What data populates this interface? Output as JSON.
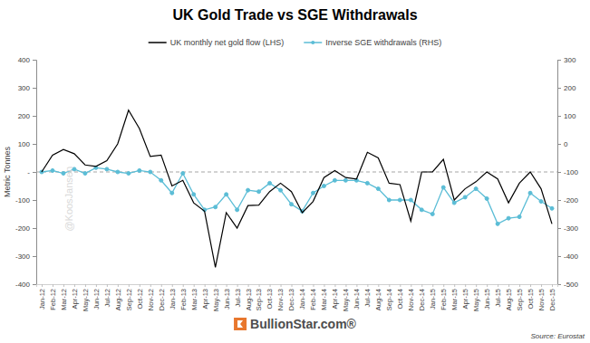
{
  "chart_data": {
    "type": "line",
    "title": "UK Gold Trade vs SGE Withdrawals",
    "y_label": "Metric Tonnes",
    "categories": [
      "Jan-12",
      "Feb-12",
      "Mar-12",
      "Apr-12",
      "May-12",
      "Jun-12",
      "Jul-12",
      "Aug-12",
      "Sep-12",
      "Oct-12",
      "Nov-12",
      "Dec-12",
      "Jan-13",
      "Feb-13",
      "Mar-13",
      "Apr-13",
      "May-13",
      "Jun-13",
      "Jul-13",
      "Aug-13",
      "Sep-13",
      "Oct-13",
      "Nov-13",
      "Dec-13",
      "Jan-14",
      "Feb-14",
      "Mar-14",
      "Apr-14",
      "May-14",
      "Jun-14",
      "Jul-14",
      "Aug-14",
      "Sep-14",
      "Oct-14",
      "Nov-14",
      "Dec-14",
      "Jan-15",
      "Feb-15",
      "Mar-15",
      "Apr-15",
      "May-15",
      "Jun-15",
      "Jul-15",
      "Aug-15",
      "Sep-15",
      "Oct-15",
      "Nov-15",
      "Dec-15"
    ],
    "series": [
      {
        "name": "UK monthly net gold flow (LHS)",
        "color": "#000000",
        "marker": "none",
        "line_style": "solid",
        "values": [
          0,
          60,
          80,
          65,
          25,
          20,
          40,
          100,
          220,
          155,
          55,
          60,
          -50,
          -30,
          -110,
          -140,
          -340,
          -145,
          -200,
          -120,
          -118,
          -70,
          -40,
          -70,
          -145,
          -105,
          -20,
          5,
          -20,
          -25,
          70,
          50,
          -40,
          -45,
          -175,
          0,
          0,
          45,
          -100,
          -60,
          -35,
          0,
          -25,
          -110,
          -40,
          0,
          -60,
          -185
        ]
      },
      {
        "name": "Inverse SGE withdrawals (RHS)",
        "color": "#5bbdd6",
        "marker": "circle",
        "line_style": "solid",
        "axis": "y2",
        "values": [
          -100,
          -95,
          -105,
          -90,
          -105,
          -85,
          -90,
          -100,
          -105,
          -95,
          -100,
          -130,
          -175,
          -105,
          -180,
          -235,
          -225,
          -180,
          -235,
          -165,
          -170,
          -140,
          -165,
          -215,
          -240,
          -175,
          -150,
          -130,
          -130,
          -130,
          -140,
          -160,
          -200,
          -200,
          -200,
          -235,
          -250,
          -155,
          -210,
          -190,
          -160,
          -195,
          -285,
          -265,
          -260,
          -175,
          -205,
          -230
        ]
      }
    ],
    "ylim": [
      -400,
      400
    ],
    "yticks": [
      -400,
      -300,
      -200,
      -100,
      {
        "value": 0,
        "label": "-"
      },
      100,
      200,
      300,
      400
    ],
    "y2lim": [
      -500,
      300
    ],
    "y2ticks": [
      -500,
      -400,
      -300,
      -200,
      -100,
      0,
      100,
      200,
      300
    ],
    "reference_line": {
      "value": 0,
      "line_style": "dashed"
    },
    "grid": false,
    "legend": "top",
    "annotations": [
      {
        "text": "@KoosJansen"
      },
      {
        "text": "BullionStar.com®"
      },
      {
        "text": "Source: Eurostat"
      }
    ]
  }
}
